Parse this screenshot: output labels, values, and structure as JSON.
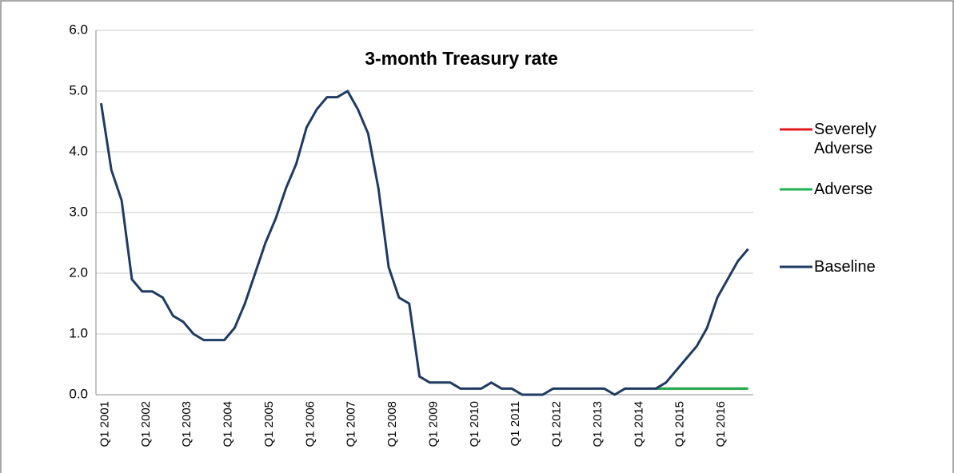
{
  "chart_data": {
    "type": "line",
    "title": "3-month Treasury rate",
    "categories": [
      "Q1 2001",
      null,
      null,
      null,
      "Q1 2002",
      null,
      null,
      null,
      "Q1 2003",
      null,
      null,
      null,
      "Q1 2004",
      null,
      null,
      null,
      "Q1 2005",
      null,
      null,
      null,
      "Q1 2006",
      null,
      null,
      null,
      "Q1 2007",
      null,
      null,
      null,
      "Q1 2008",
      null,
      null,
      null,
      "Q1 2009",
      null,
      null,
      null,
      "Q1 2010",
      null,
      null,
      null,
      "Q1 2011",
      null,
      null,
      null,
      "Q1 2012",
      null,
      null,
      null,
      "Q1 2013",
      null,
      null,
      null,
      "Q1 2014",
      null,
      null,
      null,
      "Q1 2015",
      null,
      null,
      null,
      "Q1 2016",
      null,
      null,
      null
    ],
    "series": [
      {
        "name": "Severely Adverse",
        "color": "#e31a1c",
        "values": [
          null,
          null,
          null,
          null,
          null,
          null,
          null,
          null,
          null,
          null,
          null,
          null,
          null,
          null,
          null,
          null,
          null,
          null,
          null,
          null,
          null,
          null,
          null,
          null,
          null,
          null,
          null,
          null,
          null,
          null,
          null,
          null,
          null,
          null,
          null,
          null,
          null,
          null,
          null,
          null,
          null,
          null,
          null,
          null,
          null,
          null,
          null,
          null,
          null,
          null,
          null,
          null,
          null,
          null,
          0.1,
          0.1,
          0.1,
          0.1,
          0.1,
          0.1,
          0.1,
          0.1,
          0.1,
          0.1
        ]
      },
      {
        "name": "Adverse",
        "color": "#1db150",
        "values": [
          null,
          null,
          null,
          null,
          null,
          null,
          null,
          null,
          null,
          null,
          null,
          null,
          null,
          null,
          null,
          null,
          null,
          null,
          null,
          null,
          null,
          null,
          null,
          null,
          null,
          null,
          null,
          null,
          null,
          null,
          null,
          null,
          null,
          null,
          null,
          null,
          null,
          null,
          null,
          null,
          null,
          null,
          null,
          null,
          null,
          null,
          null,
          null,
          null,
          null,
          null,
          null,
          null,
          null,
          0.1,
          0.1,
          0.1,
          0.1,
          0.1,
          0.1,
          0.1,
          0.1,
          0.1,
          0.1
        ]
      },
      {
        "name": "Baseline",
        "color": "#1f3b63",
        "values": [
          4.8,
          3.7,
          3.2,
          1.9,
          1.7,
          1.7,
          1.6,
          1.3,
          1.2,
          1.0,
          0.9,
          0.9,
          0.9,
          1.1,
          1.5,
          2.0,
          2.5,
          2.9,
          3.4,
          3.8,
          4.4,
          4.7,
          4.9,
          4.9,
          5.0,
          4.7,
          4.3,
          3.4,
          2.1,
          1.6,
          1.5,
          0.3,
          0.2,
          0.2,
          0.2,
          0.1,
          0.1,
          0.1,
          0.2,
          0.1,
          0.1,
          0.0,
          0.0,
          0.0,
          0.1,
          0.1,
          0.1,
          0.1,
          0.1,
          0.1,
          0.0,
          0.1,
          0.1,
          0.1,
          0.1,
          0.2,
          0.4,
          0.6,
          0.8,
          1.1,
          1.6,
          1.9,
          2.2,
          2.4
        ]
      }
    ],
    "ylim": [
      0,
      6
    ],
    "yticks": [
      {
        "value": 0,
        "label": "0.0"
      },
      {
        "value": 1,
        "label": "1.0"
      },
      {
        "value": 2,
        "label": "2.0"
      },
      {
        "value": 3,
        "label": "3.0"
      },
      {
        "value": 4,
        "label": "4.0"
      },
      {
        "value": 5,
        "label": "5.0"
      },
      {
        "value": 6,
        "label": "6.0"
      }
    ],
    "grid": true
  }
}
